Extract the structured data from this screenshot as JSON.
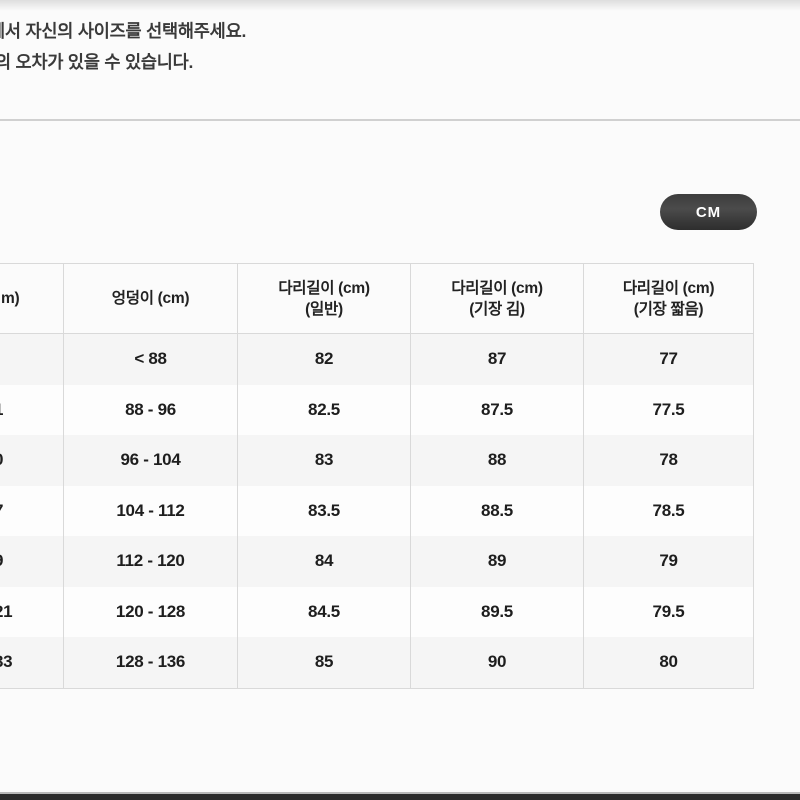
{
  "intro": {
    "line1": "에서 자신의 사이즈를 선택해주세요.",
    "line2": "의 오차가 있을 수 있습니다."
  },
  "unit_toggle": {
    "label": "CM"
  },
  "table": {
    "headers": {
      "col1_fragment": "m)",
      "col2": "엉덩이 (cm)",
      "col3_line1": "다리길이 (cm)",
      "col3_line2": "(일반)",
      "col4_line1": "다리길이 (cm)",
      "col4_line2": "(기장 김)",
      "col5_line1": "다리길이 (cm)",
      "col5_line2": "(기장 짧음)"
    },
    "rows": [
      {
        "col1_fragment": "",
        "hip": "< 88",
        "leg_normal": "82",
        "leg_long": "87",
        "leg_short": "77"
      },
      {
        "col1_fragment": "1",
        "hip": "88 - 96",
        "leg_normal": "82.5",
        "leg_long": "87.5",
        "leg_short": "77.5"
      },
      {
        "col1_fragment": "0",
        "hip": "96 - 104",
        "leg_normal": "83",
        "leg_long": "88",
        "leg_short": "78"
      },
      {
        "col1_fragment": "7",
        "hip": "104 - 112",
        "leg_normal": "83.5",
        "leg_long": "88.5",
        "leg_short": "78.5"
      },
      {
        "col1_fragment": "9",
        "hip": "112 - 120",
        "leg_normal": "84",
        "leg_long": "89",
        "leg_short": "79"
      },
      {
        "col1_fragment": "21",
        "hip": "120 - 128",
        "leg_normal": "84.5",
        "leg_long": "89.5",
        "leg_short": "79.5"
      },
      {
        "col1_fragment": "33",
        "hip": "128 - 136",
        "leg_normal": "85",
        "leg_long": "90",
        "leg_short": "80"
      }
    ]
  },
  "colors": {
    "button_dark": "#3a3a3a",
    "row_shade": "#f5f5f5",
    "border": "#d9d9d9",
    "bottom_bar": "#2c2c2c"
  }
}
